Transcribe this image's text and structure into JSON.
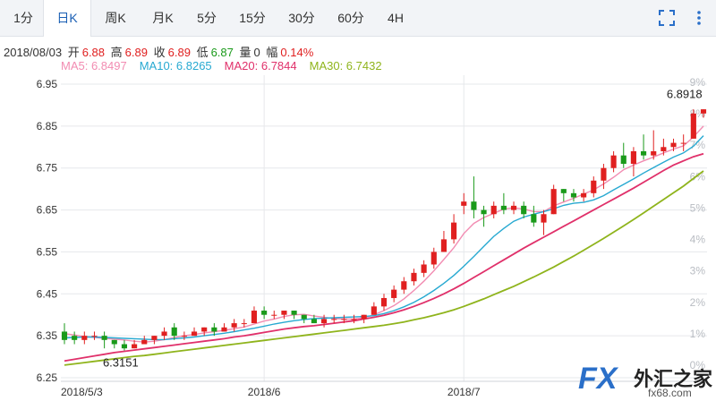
{
  "tabs": [
    {
      "label": "1分",
      "active": false
    },
    {
      "label": "日K",
      "active": true
    },
    {
      "label": "周K",
      "active": false
    },
    {
      "label": "月K",
      "active": false
    },
    {
      "label": "5分",
      "active": false
    },
    {
      "label": "15分",
      "active": false
    },
    {
      "label": "30分",
      "active": false
    },
    {
      "label": "60分",
      "active": false
    },
    {
      "label": "4H",
      "active": false
    }
  ],
  "tools": {
    "fullscreen_icon": "fullscreen-icon",
    "menu_icon": "more-vertical-icon"
  },
  "info": {
    "date": "2018/08/03",
    "open_label": "开",
    "open": "6.88",
    "high_label": "高",
    "high": "6.89",
    "close_label": "收",
    "close": "6.89",
    "low_label": "低",
    "low": "6.87",
    "vol_label": "量",
    "vol": "0",
    "range_label": "幅",
    "range": "0.14%"
  },
  "ma": [
    {
      "label": "MA5: 6.8497",
      "color": "#f28cb2"
    },
    {
      "label": "MA10: 6.8265",
      "color": "#27a9d1"
    },
    {
      "label": "MA20: 6.7844",
      "color": "#e0306a"
    },
    {
      "label": "MA30: 6.7432",
      "color": "#8fb41c"
    }
  ],
  "colors": {
    "up": "#e02020",
    "down": "#1a9a1a",
    "grid": "#e6e8eb",
    "axis_text": "#333333",
    "pct_text": "#b8bcc2"
  },
  "logo": {
    "fx": "FX",
    "cn": "外汇之家",
    "url": "fx68.com"
  },
  "chart_data": {
    "type": "candlestick",
    "y_ticks": [
      "6.95",
      "6.85",
      "6.75",
      "6.65",
      "6.55",
      "6.45",
      "6.35",
      "6.25"
    ],
    "ylim": [
      6.25,
      6.95
    ],
    "pct_ticks": [
      "9%",
      "8%",
      "7%",
      "6%",
      "5%",
      "4%",
      "3%",
      "2%",
      "1%",
      "0%"
    ],
    "x_labels": [
      {
        "label": "2018/5/3",
        "index": 0
      },
      {
        "label": "2018/6",
        "index": 20
      },
      {
        "label": "2018/7",
        "index": 40
      }
    ],
    "annotations": [
      {
        "label": "6.3151",
        "index": 6,
        "value": 6.3151
      },
      {
        "label": "6.8918",
        "index": 63,
        "value": 6.8918
      }
    ],
    "candles": [
      [
        6.36,
        6.34,
        6.38,
        6.33
      ],
      [
        6.35,
        6.34,
        6.36,
        6.33
      ],
      [
        6.34,
        6.35,
        6.36,
        6.33
      ],
      [
        6.35,
        6.35,
        6.36,
        6.34
      ],
      [
        6.35,
        6.34,
        6.36,
        6.32
      ],
      [
        6.34,
        6.33,
        6.34,
        6.32
      ],
      [
        6.33,
        6.32,
        6.34,
        6.315
      ],
      [
        6.32,
        6.33,
        6.34,
        6.32
      ],
      [
        6.33,
        6.34,
        6.35,
        6.33
      ],
      [
        6.34,
        6.35,
        6.35,
        6.33
      ],
      [
        6.35,
        6.36,
        6.37,
        6.34
      ],
      [
        6.37,
        6.35,
        6.38,
        6.34
      ],
      [
        6.35,
        6.35,
        6.36,
        6.34
      ],
      [
        6.35,
        6.36,
        6.37,
        6.35
      ],
      [
        6.36,
        6.37,
        6.37,
        6.35
      ],
      [
        6.37,
        6.36,
        6.38,
        6.35
      ],
      [
        6.36,
        6.37,
        6.38,
        6.36
      ],
      [
        6.37,
        6.38,
        6.39,
        6.36
      ],
      [
        6.38,
        6.38,
        6.39,
        6.37
      ],
      [
        6.38,
        6.41,
        6.42,
        6.38
      ],
      [
        6.41,
        6.4,
        6.42,
        6.39
      ],
      [
        6.4,
        6.4,
        6.41,
        6.39
      ],
      [
        6.4,
        6.41,
        6.41,
        6.39
      ],
      [
        6.41,
        6.4,
        6.41,
        6.39
      ],
      [
        6.4,
        6.39,
        6.4,
        6.38
      ],
      [
        6.39,
        6.38,
        6.4,
        6.38
      ],
      [
        6.38,
        6.39,
        6.4,
        6.37
      ],
      [
        6.39,
        6.39,
        6.4,
        6.38
      ],
      [
        6.39,
        6.39,
        6.4,
        6.38
      ],
      [
        6.39,
        6.39,
        6.4,
        6.38
      ],
      [
        6.39,
        6.4,
        6.4,
        6.38
      ],
      [
        6.4,
        6.42,
        6.43,
        6.4
      ],
      [
        6.42,
        6.44,
        6.45,
        6.41
      ],
      [
        6.44,
        6.46,
        6.47,
        6.43
      ],
      [
        6.46,
        6.48,
        6.49,
        6.45
      ],
      [
        6.48,
        6.5,
        6.51,
        6.47
      ],
      [
        6.5,
        6.52,
        6.53,
        6.49
      ],
      [
        6.52,
        6.55,
        6.56,
        6.51
      ],
      [
        6.55,
        6.58,
        6.6,
        6.55
      ],
      [
        6.58,
        6.62,
        6.64,
        6.57
      ],
      [
        6.66,
        6.67,
        6.69,
        6.64
      ],
      [
        6.67,
        6.65,
        6.73,
        6.63
      ],
      [
        6.65,
        6.64,
        6.66,
        6.61
      ],
      [
        6.64,
        6.66,
        6.67,
        6.63
      ],
      [
        6.66,
        6.65,
        6.69,
        6.64
      ],
      [
        6.65,
        6.66,
        6.67,
        6.64
      ],
      [
        6.66,
        6.64,
        6.67,
        6.63
      ],
      [
        6.64,
        6.62,
        6.66,
        6.61
      ],
      [
        6.62,
        6.64,
        6.65,
        6.59
      ],
      [
        6.64,
        6.7,
        6.71,
        6.64
      ],
      [
        6.7,
        6.69,
        6.7,
        6.67
      ],
      [
        6.69,
        6.68,
        6.7,
        6.67
      ],
      [
        6.68,
        6.69,
        6.7,
        6.67
      ],
      [
        6.69,
        6.72,
        6.73,
        6.68
      ],
      [
        6.72,
        6.75,
        6.76,
        6.7
      ],
      [
        6.75,
        6.78,
        6.79,
        6.74
      ],
      [
        6.78,
        6.76,
        6.81,
        6.75
      ],
      [
        6.76,
        6.79,
        6.8,
        6.73
      ],
      [
        6.79,
        6.78,
        6.83,
        6.77
      ],
      [
        6.78,
        6.79,
        6.84,
        6.77
      ],
      [
        6.79,
        6.8,
        6.82,
        6.78
      ],
      [
        6.8,
        6.81,
        6.82,
        6.79
      ],
      [
        6.81,
        6.81,
        6.83,
        6.79
      ],
      [
        6.82,
        6.88,
        6.89,
        6.82
      ],
      [
        6.88,
        6.89,
        6.89,
        6.87
      ]
    ],
    "series": [
      {
        "name": "MA5",
        "values": [
          6.355,
          6.352,
          6.348,
          6.346,
          6.344,
          6.342,
          6.34,
          6.337,
          6.335,
          6.337,
          6.341,
          6.346,
          6.35,
          6.353,
          6.357,
          6.36,
          6.363,
          6.367,
          6.371,
          6.378,
          6.385,
          6.39,
          6.396,
          6.4,
          6.401,
          6.397,
          6.394,
          6.391,
          6.39,
          6.39,
          6.393,
          6.4,
          6.41,
          6.422,
          6.438,
          6.458,
          6.48,
          6.505,
          6.532,
          6.56,
          6.594,
          6.618,
          6.632,
          6.642,
          6.652,
          6.655,
          6.652,
          6.646,
          6.646,
          6.66,
          6.669,
          6.678,
          6.688,
          6.698,
          6.712,
          6.728,
          6.746,
          6.757,
          6.767,
          6.776,
          6.786,
          6.795,
          6.803,
          6.824,
          6.85
        ]
      },
      {
        "name": "MA10",
        "values": [
          6.345,
          6.346,
          6.347,
          6.347,
          6.346,
          6.345,
          6.344,
          6.343,
          6.342,
          6.341,
          6.341,
          6.343,
          6.345,
          6.347,
          6.35,
          6.353,
          6.356,
          6.36,
          6.364,
          6.368,
          6.373,
          6.378,
          6.382,
          6.386,
          6.389,
          6.391,
          6.392,
          6.393,
          6.394,
          6.395,
          6.396,
          6.398,
          6.403,
          6.41,
          6.419,
          6.43,
          6.443,
          6.458,
          6.475,
          6.494,
          6.516,
          6.539,
          6.563,
          6.587,
          6.606,
          6.623,
          6.633,
          6.64,
          6.646,
          6.653,
          6.661,
          6.666,
          6.668,
          6.674,
          6.684,
          6.698,
          6.711,
          6.724,
          6.738,
          6.751,
          6.764,
          6.776,
          6.786,
          6.802,
          6.827
        ]
      },
      {
        "name": "MA20",
        "values": [
          6.29,
          6.294,
          6.298,
          6.302,
          6.306,
          6.31,
          6.313,
          6.316,
          6.319,
          6.322,
          6.325,
          6.328,
          6.331,
          6.334,
          6.337,
          6.34,
          6.343,
          6.347,
          6.35,
          6.354,
          6.358,
          6.362,
          6.366,
          6.369,
          6.372,
          6.374,
          6.377,
          6.38,
          6.383,
          6.386,
          6.39,
          6.394,
          6.399,
          6.405,
          6.412,
          6.42,
          6.429,
          6.439,
          6.45,
          6.462,
          6.475,
          6.489,
          6.503,
          6.517,
          6.531,
          6.545,
          6.559,
          6.572,
          6.585,
          6.598,
          6.611,
          6.624,
          6.637,
          6.65,
          6.663,
          6.676,
          6.689,
          6.702,
          6.716,
          6.73,
          6.744,
          6.757,
          6.767,
          6.777,
          6.784
        ]
      },
      {
        "name": "MA30",
        "values": [
          6.28,
          6.283,
          6.286,
          6.289,
          6.292,
          6.295,
          6.298,
          6.301,
          6.303,
          6.306,
          6.309,
          6.312,
          6.315,
          6.318,
          6.321,
          6.324,
          6.327,
          6.33,
          6.333,
          6.336,
          6.339,
          6.342,
          6.345,
          6.348,
          6.351,
          6.354,
          6.357,
          6.36,
          6.363,
          6.366,
          6.369,
          6.372,
          6.375,
          6.379,
          6.383,
          6.388,
          6.393,
          6.399,
          6.405,
          6.412,
          6.42,
          6.429,
          6.438,
          6.448,
          6.458,
          6.468,
          6.479,
          6.49,
          6.502,
          6.514,
          6.527,
          6.54,
          6.554,
          6.568,
          6.582,
          6.597,
          6.612,
          6.627,
          6.643,
          6.659,
          6.675,
          6.691,
          6.707,
          6.725,
          6.743
        ]
      }
    ]
  }
}
